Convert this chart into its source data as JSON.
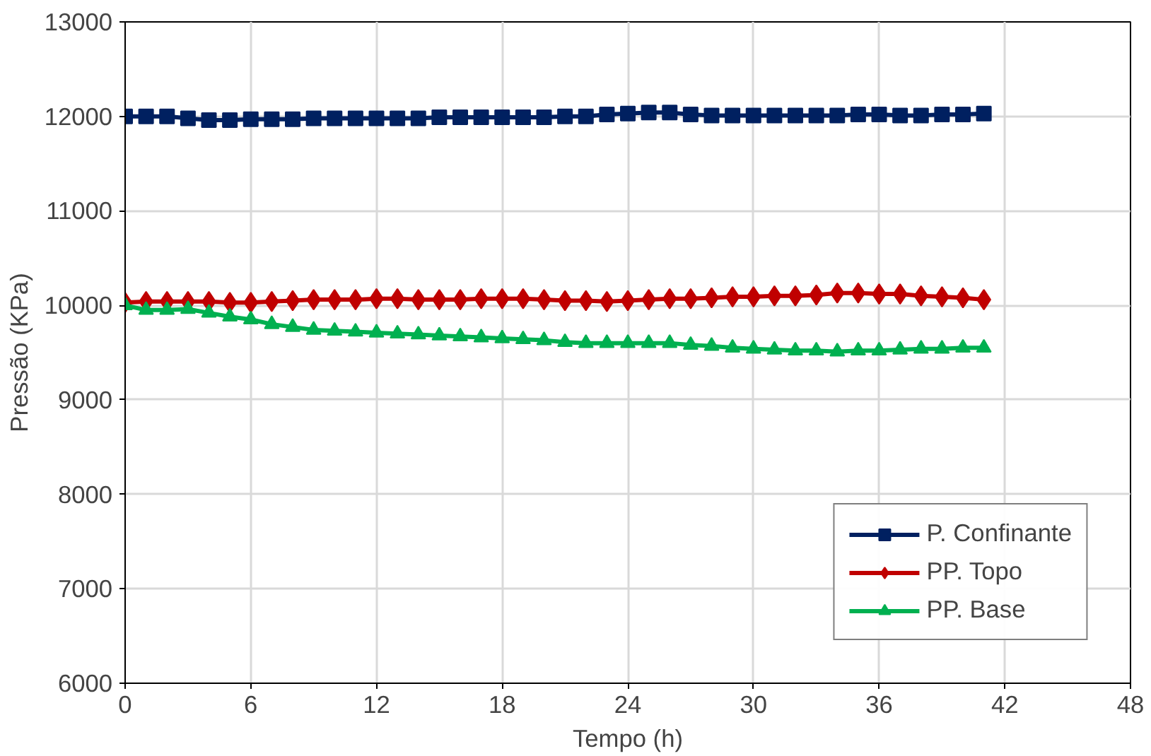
{
  "chart_data": {
    "type": "line",
    "xlabel": "Tempo (h)",
    "ylabel": "Pressão (KPa)",
    "x": [
      0,
      1,
      2,
      3,
      4,
      5,
      6,
      7,
      8,
      9,
      10,
      11,
      12,
      13,
      14,
      15,
      16,
      17,
      18,
      19,
      20,
      21,
      22,
      23,
      24,
      25,
      26,
      27,
      28,
      29,
      30,
      31,
      32,
      33,
      34,
      35,
      36,
      37,
      38,
      39,
      40,
      41
    ],
    "series": [
      {
        "name": "P. Confinante",
        "color": "#002060",
        "marker": "square",
        "values": [
          12000,
          12000,
          12000,
          11980,
          11960,
          11960,
          11970,
          11970,
          11970,
          11980,
          11980,
          11980,
          11980,
          11980,
          11980,
          11990,
          11990,
          11990,
          11990,
          11990,
          11990,
          12000,
          12000,
          12020,
          12030,
          12040,
          12040,
          12020,
          12010,
          12010,
          12010,
          12010,
          12010,
          12010,
          12010,
          12020,
          12020,
          12010,
          12010,
          12020,
          12020,
          12030
        ]
      },
      {
        "name": "PP. Topo",
        "color": "#c00000",
        "marker": "diamond",
        "values": [
          10030,
          10040,
          10040,
          10040,
          10040,
          10030,
          10030,
          10040,
          10050,
          10060,
          10060,
          10060,
          10070,
          10070,
          10060,
          10060,
          10060,
          10070,
          10070,
          10070,
          10060,
          10050,
          10050,
          10040,
          10050,
          10060,
          10070,
          10070,
          10080,
          10090,
          10090,
          10100,
          10100,
          10110,
          10130,
          10130,
          10120,
          10120,
          10100,
          10090,
          10080,
          10060
        ]
      },
      {
        "name": "PP. Base",
        "color": "#00b050",
        "marker": "triangle",
        "values": [
          10000,
          9950,
          9950,
          9960,
          9920,
          9880,
          9850,
          9800,
          9770,
          9740,
          9730,
          9720,
          9710,
          9700,
          9690,
          9680,
          9670,
          9660,
          9650,
          9640,
          9630,
          9610,
          9600,
          9600,
          9600,
          9600,
          9600,
          9580,
          9570,
          9550,
          9540,
          9530,
          9520,
          9520,
          9510,
          9520,
          9520,
          9530,
          9540,
          9540,
          9550,
          9550
        ]
      }
    ],
    "xlim": [
      0,
      48
    ],
    "xticks": [
      0,
      6,
      12,
      18,
      24,
      30,
      36,
      42,
      48
    ],
    "ylim": [
      6000,
      13000
    ],
    "yticks": [
      6000,
      7000,
      8000,
      9000,
      10000,
      11000,
      12000,
      13000
    ],
    "grid": true,
    "legend": "bottom right",
    "line_style": "solid"
  }
}
